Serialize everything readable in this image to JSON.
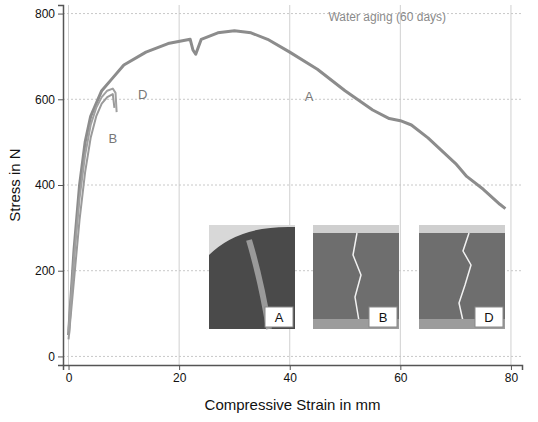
{
  "chart_data": {
    "type": "line",
    "x_label": "Compressive Strain in mm",
    "y_label": "Stress in N",
    "xlim": [
      -1,
      82
    ],
    "ylim": [
      -20,
      820
    ],
    "xticks": [
      0,
      20,
      40,
      60,
      80
    ],
    "yticks": [
      0,
      200,
      400,
      600,
      800
    ],
    "grid": true,
    "series": [
      {
        "name": "A",
        "color": "#8c8c8c",
        "x": [
          0,
          1,
          2,
          3,
          4,
          6,
          8,
          10,
          14,
          18,
          22,
          22.5,
          23,
          24,
          27,
          30,
          33,
          36,
          40,
          45,
          50,
          55,
          58,
          60,
          62,
          65,
          70,
          72,
          75,
          78,
          79
        ],
        "values": [
          50,
          250,
          400,
          500,
          560,
          620,
          650,
          680,
          710,
          730,
          740,
          715,
          705,
          740,
          755,
          760,
          755,
          740,
          710,
          670,
          620,
          575,
          555,
          550,
          540,
          510,
          450,
          420,
          390,
          355,
          345
        ]
      },
      {
        "name": "B",
        "color": "#9a9a9a",
        "x": [
          0,
          1,
          2,
          3,
          4,
          5,
          6,
          7,
          8,
          8.3
        ],
        "values": [
          40,
          180,
          320,
          430,
          510,
          560,
          590,
          605,
          612,
          580
        ]
      },
      {
        "name": "D",
        "color": "#a0a0a0",
        "x": [
          0,
          1,
          2,
          3,
          4,
          5,
          6,
          7,
          8,
          8.5,
          8.7
        ],
        "values": [
          60,
          230,
          370,
          470,
          540,
          580,
          605,
          620,
          625,
          615,
          570
        ]
      }
    ],
    "annotations": [
      {
        "text": "Water aging (60 days)",
        "x": 47,
        "y": 790
      },
      {
        "text": "A",
        "x": 43.5,
        "y": 603
      },
      {
        "text": "B",
        "x": 8,
        "y": 505
      },
      {
        "text": "D",
        "x": 13.4,
        "y": 608
      }
    ]
  }
}
